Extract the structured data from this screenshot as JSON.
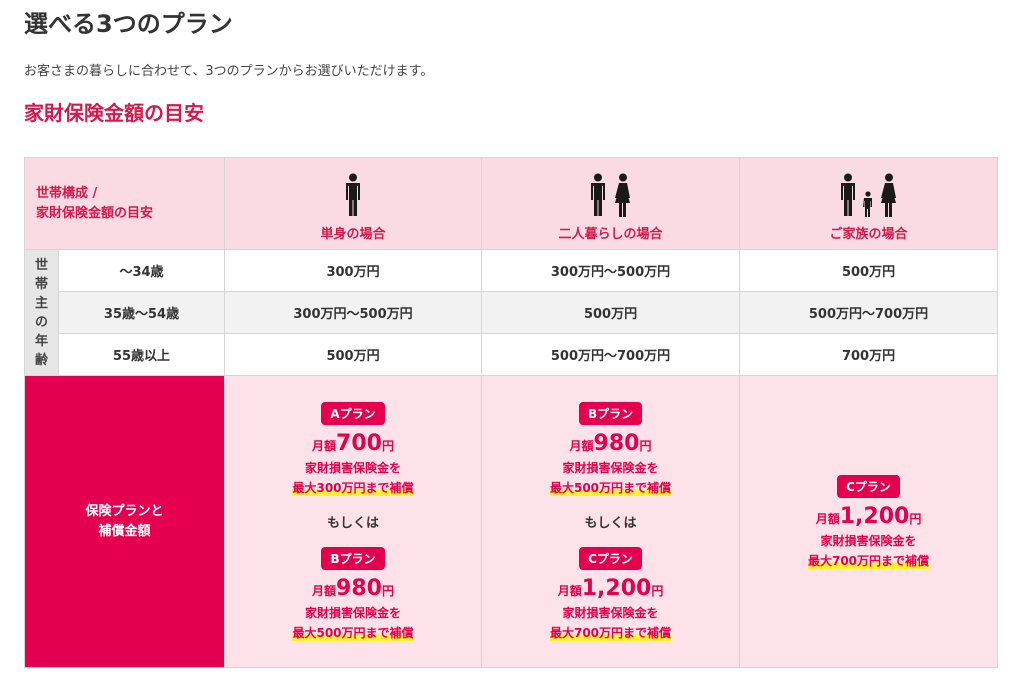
{
  "page": {
    "title": "選べる3つのプラン",
    "intro": "お客さまの暮らしに合わせて、3つのプランからお選びいただけます。",
    "subtitle": "家財保険金額の目安"
  },
  "table": {
    "corner": [
      "世帯構成 /",
      "家財保険金額の目安"
    ],
    "headers": [
      {
        "label": "単身の場合",
        "icon": "single-person-icon"
      },
      {
        "label": "二人暮らしの場合",
        "icon": "couple-icon"
      },
      {
        "label": "ご家族の場合",
        "icon": "family-icon"
      }
    ],
    "age_group_label": [
      "世",
      "帯",
      "主",
      "の",
      "年",
      "齢"
    ],
    "rows": [
      {
        "age": "～34歳",
        "values": [
          "300万円",
          "300万円～500万円",
          "500万円"
        ]
      },
      {
        "age": "35歳～54歳",
        "values": [
          "300万円～500万円",
          "500万円",
          "500万円～700万円"
        ]
      },
      {
        "age": "55歳以上",
        "values": [
          "500万円",
          "500万円～700万円",
          "700万円"
        ]
      }
    ],
    "plan_row_label": [
      "保険プランと",
      "補償金額"
    ],
    "or_text": "もしくは",
    "plans": {
      "single": [
        {
          "badge": "Aプラン",
          "prefix": "月額",
          "amount": "700",
          "unit": "円",
          "desc": "家財損害保険金を",
          "cover": "最大300万円まで補償"
        },
        {
          "badge": "Bプラン",
          "prefix": "月額",
          "amount": "980",
          "unit": "円",
          "desc": "家財損害保険金を",
          "cover": "最大500万円まで補償"
        }
      ],
      "couple": [
        {
          "badge": "Bプラン",
          "prefix": "月額",
          "amount": "980",
          "unit": "円",
          "desc": "家財損害保険金を",
          "cover": "最大500万円まで補償"
        },
        {
          "badge": "Cプラン",
          "prefix": "月額",
          "amount": "1,200",
          "unit": "円",
          "desc": "家財損害保険金を",
          "cover": "最大700万円まで補償"
        }
      ],
      "family": {
        "badge": "Cプラン",
        "prefix": "月額",
        "amount": "1,200",
        "unit": "円",
        "desc": "家財損害保険金を",
        "cover": "最大700万円まで補償"
      }
    }
  },
  "colors": {
    "accent": "#e5004f",
    "header_bg": "#fadbe3",
    "plan_bg": "#fde3e9",
    "highlight": "#fff22e"
  }
}
